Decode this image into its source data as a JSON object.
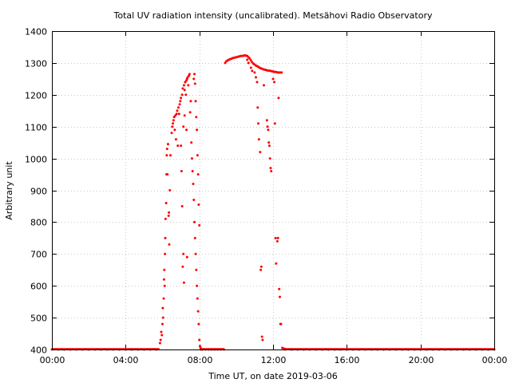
{
  "chart_data": {
    "type": "scatter",
    "title": "Total UV radiation intensity (uncalibrated). Metsähovi Radio Observatory",
    "xlabel": "Time UT, on date 2019-03-06",
    "ylabel": "Arbitrary unit",
    "xlim": [
      "00:00",
      "24:00"
    ],
    "ylim": [
      400,
      1400
    ],
    "grid": true,
    "marker_color": "#ff0000",
    "x_ticks": [
      "00:00",
      "04:00",
      "08:00",
      "12:00",
      "16:00",
      "20:00",
      "00:00"
    ],
    "y_ticks": [
      400,
      500,
      600,
      700,
      800,
      900,
      1000,
      1100,
      1200,
      1300,
      1400
    ],
    "series": [
      {
        "points": [
          [
            "00:00",
            400
          ],
          [
            "00:20",
            400
          ],
          [
            "00:40",
            400
          ],
          [
            "01:00",
            400
          ],
          [
            "01:20",
            400
          ],
          [
            "01:40",
            400
          ],
          [
            "02:00",
            400
          ],
          [
            "02:20",
            400
          ],
          [
            "02:40",
            400
          ],
          [
            "03:00",
            400
          ],
          [
            "03:20",
            400
          ],
          [
            "03:40",
            400
          ],
          [
            "04:00",
            400
          ],
          [
            "04:20",
            400
          ],
          [
            "04:40",
            400
          ],
          [
            "05:00",
            400
          ],
          [
            "05:20",
            400
          ],
          [
            "05:40",
            400
          ],
          [
            "05:52",
            420
          ],
          [
            "05:54",
            430
          ],
          [
            "05:56",
            455
          ],
          [
            "05:58",
            445
          ],
          [
            "06:00",
            480
          ],
          [
            "06:01",
            530
          ],
          [
            "06:02",
            500
          ],
          [
            "06:04",
            560
          ],
          [
            "06:05",
            620
          ],
          [
            "06:06",
            650
          ],
          [
            "06:07",
            600
          ],
          [
            "06:08",
            700
          ],
          [
            "06:09",
            750
          ],
          [
            "06:10",
            810
          ],
          [
            "06:12",
            860
          ],
          [
            "06:13",
            950
          ],
          [
            "06:14",
            1010
          ],
          [
            "06:15",
            1030
          ],
          [
            "06:16",
            950
          ],
          [
            "06:18",
            1045
          ],
          [
            "06:20",
            820
          ],
          [
            "06:21",
            830
          ],
          [
            "06:22",
            730
          ],
          [
            "06:24",
            900
          ],
          [
            "06:26",
            1010
          ],
          [
            "06:30",
            1080
          ],
          [
            "06:32",
            1100
          ],
          [
            "06:34",
            1110
          ],
          [
            "06:36",
            1120
          ],
          [
            "06:38",
            1130
          ],
          [
            "06:40",
            1090
          ],
          [
            "06:42",
            1135
          ],
          [
            "06:44",
            1060
          ],
          [
            "06:46",
            1140
          ],
          [
            "06:48",
            1150
          ],
          [
            "06:50",
            1040
          ],
          [
            "06:52",
            1160
          ],
          [
            "06:54",
            1140
          ],
          [
            "06:56",
            1170
          ],
          [
            "06:58",
            1180
          ],
          [
            "07:00",
            1190
          ],
          [
            "07:02",
            960
          ],
          [
            "07:04",
            1200
          ],
          [
            "07:06",
            1220
          ],
          [
            "07:08",
            1100
          ],
          [
            "07:10",
            1230
          ],
          [
            "07:12",
            1215
          ],
          [
            "07:14",
            1240
          ],
          [
            "07:16",
            1200
          ],
          [
            "07:18",
            1245
          ],
          [
            "07:20",
            1250
          ],
          [
            "07:22",
            1255
          ],
          [
            "07:24",
            1230
          ],
          [
            "07:26",
            1260
          ],
          [
            "07:28",
            1265
          ],
          [
            "07:00",
            1040
          ],
          [
            "07:04",
            850
          ],
          [
            "07:06",
            660
          ],
          [
            "07:08",
            700
          ],
          [
            "07:10",
            610
          ],
          [
            "07:12",
            1135
          ],
          [
            "07:14",
            1240
          ],
          [
            "07:18",
            1090
          ],
          [
            "07:20",
            690
          ],
          [
            "07:30",
            1145
          ],
          [
            "07:32",
            1180
          ],
          [
            "07:34",
            1050
          ],
          [
            "07:36",
            1000
          ],
          [
            "07:38",
            960
          ],
          [
            "07:40",
            920
          ],
          [
            "07:42",
            870
          ],
          [
            "07:44",
            800
          ],
          [
            "07:46",
            750
          ],
          [
            "07:48",
            700
          ],
          [
            "07:50",
            650
          ],
          [
            "07:52",
            600
          ],
          [
            "07:54",
            560
          ],
          [
            "07:56",
            520
          ],
          [
            "07:58",
            480
          ],
          [
            "08:00",
            430
          ],
          [
            "08:02",
            410
          ],
          [
            "08:04",
            405
          ],
          [
            "07:42",
            1250
          ],
          [
            "07:44",
            1265
          ],
          [
            "07:46",
            1235
          ],
          [
            "07:48",
            1180
          ],
          [
            "07:50",
            1130
          ],
          [
            "07:52",
            1090
          ],
          [
            "07:54",
            1010
          ],
          [
            "07:56",
            950
          ],
          [
            "07:58",
            855
          ],
          [
            "08:00",
            790
          ],
          [
            "08:06",
            400
          ],
          [
            "08:10",
            400
          ],
          [
            "08:20",
            400
          ],
          [
            "08:30",
            400
          ],
          [
            "08:40",
            400
          ],
          [
            "08:50",
            400
          ],
          [
            "09:00",
            400
          ],
          [
            "09:10",
            400
          ],
          [
            "09:20",
            400
          ],
          [
            "09:24",
            1300
          ],
          [
            "09:28",
            1305
          ],
          [
            "09:32",
            1308
          ],
          [
            "09:36",
            1310
          ],
          [
            "09:40",
            1312
          ],
          [
            "09:44",
            1313
          ],
          [
            "09:48",
            1315
          ],
          [
            "09:52",
            1316
          ],
          [
            "09:56",
            1317
          ],
          [
            "10:00",
            1318
          ],
          [
            "10:04",
            1319
          ],
          [
            "10:08",
            1320
          ],
          [
            "10:12",
            1321
          ],
          [
            "10:16",
            1322
          ],
          [
            "10:20",
            1322
          ],
          [
            "10:24",
            1323
          ],
          [
            "10:28",
            1324
          ],
          [
            "10:32",
            1323
          ],
          [
            "10:36",
            1322
          ],
          [
            "10:40",
            1318
          ],
          [
            "10:44",
            1314
          ],
          [
            "10:48",
            1308
          ],
          [
            "10:52",
            1302
          ],
          [
            "10:56",
            1298
          ],
          [
            "11:00",
            1295
          ],
          [
            "11:04",
            1292
          ],
          [
            "11:08",
            1290
          ],
          [
            "11:12",
            1288
          ],
          [
            "11:16",
            1285
          ],
          [
            "11:20",
            1283
          ],
          [
            "11:24",
            1282
          ],
          [
            "11:28",
            1280
          ],
          [
            "11:32",
            1279
          ],
          [
            "11:36",
            1278
          ],
          [
            "11:40",
            1277
          ],
          [
            "11:44",
            1276
          ],
          [
            "11:48",
            1276
          ],
          [
            "11:52",
            1275
          ],
          [
            "11:56",
            1274
          ],
          [
            "12:00",
            1273
          ],
          [
            "12:04",
            1272
          ],
          [
            "12:08",
            1272
          ],
          [
            "12:12",
            1271
          ],
          [
            "12:16",
            1270
          ],
          [
            "12:20",
            1270
          ],
          [
            "12:24",
            1270
          ],
          [
            "12:28",
            1270
          ],
          [
            "10:36",
            1310
          ],
          [
            "10:40",
            1300
          ],
          [
            "10:48",
            1285
          ],
          [
            "10:52",
            1275
          ],
          [
            "11:00",
            1270
          ],
          [
            "11:04",
            1255
          ],
          [
            "11:08",
            1240
          ],
          [
            "11:10",
            1160
          ],
          [
            "11:12",
            1110
          ],
          [
            "11:14",
            1060
          ],
          [
            "11:18",
            1020
          ],
          [
            "11:20",
            650
          ],
          [
            "11:22",
            660
          ],
          [
            "11:24",
            440
          ],
          [
            "11:26",
            430
          ],
          [
            "11:30",
            1230
          ],
          [
            "11:40",
            1120
          ],
          [
            "11:42",
            1100
          ],
          [
            "11:44",
            1090
          ],
          [
            "11:46",
            1050
          ],
          [
            "11:48",
            1040
          ],
          [
            "11:50",
            1000
          ],
          [
            "11:52",
            970
          ],
          [
            "11:54",
            960
          ],
          [
            "12:00",
            1250
          ],
          [
            "12:04",
            1240
          ],
          [
            "12:06",
            1110
          ],
          [
            "12:08",
            750
          ],
          [
            "12:10",
            670
          ],
          [
            "12:14",
            740
          ],
          [
            "12:16",
            750
          ],
          [
            "12:18",
            1190
          ],
          [
            "12:20",
            590
          ],
          [
            "12:22",
            565
          ],
          [
            "12:24",
            480
          ],
          [
            "12:26",
            480
          ],
          [
            "12:30",
            405
          ],
          [
            "12:34",
            403
          ],
          [
            "12:38",
            402
          ],
          [
            "12:40",
            400
          ],
          [
            "13:00",
            400
          ],
          [
            "13:20",
            400
          ],
          [
            "13:40",
            400
          ],
          [
            "14:00",
            400
          ],
          [
            "14:20",
            400
          ],
          [
            "14:40",
            400
          ],
          [
            "15:00",
            400
          ],
          [
            "15:20",
            400
          ],
          [
            "15:40",
            400
          ],
          [
            "16:00",
            400
          ],
          [
            "16:20",
            400
          ],
          [
            "16:40",
            400
          ],
          [
            "17:00",
            400
          ],
          [
            "17:20",
            400
          ],
          [
            "17:40",
            400
          ],
          [
            "18:00",
            400
          ],
          [
            "18:20",
            400
          ],
          [
            "18:40",
            400
          ],
          [
            "19:00",
            400
          ],
          [
            "19:20",
            400
          ],
          [
            "19:40",
            400
          ],
          [
            "20:00",
            400
          ],
          [
            "20:20",
            400
          ],
          [
            "20:40",
            400
          ],
          [
            "21:00",
            400
          ],
          [
            "21:20",
            400
          ],
          [
            "21:40",
            400
          ],
          [
            "22:00",
            400
          ],
          [
            "22:20",
            400
          ],
          [
            "22:40",
            400
          ],
          [
            "23:00",
            400
          ],
          [
            "23:20",
            400
          ],
          [
            "23:40",
            400
          ],
          [
            "24:00",
            400
          ]
        ]
      }
    ]
  }
}
